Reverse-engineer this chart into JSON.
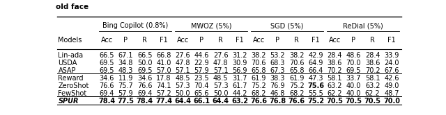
{
  "col_groups": [
    {
      "label": "Bing Copilot (0.8%)",
      "cols": [
        "Acc",
        "P",
        "R",
        "F1"
      ]
    },
    {
      "label": "MWOZ (5%)",
      "cols": [
        "Acc",
        "P",
        "R",
        "F1"
      ]
    },
    {
      "label": "SGD (5%)",
      "cols": [
        "Acc",
        "P",
        "R",
        "F1"
      ]
    },
    {
      "label": "ReDial (5%)",
      "cols": [
        "Acc",
        "P",
        "R",
        "F1"
      ]
    }
  ],
  "rows": [
    {
      "model": "Lin-ada",
      "bold": false,
      "italic": false,
      "vals": [
        "66.5",
        "67.1",
        "66.5",
        "66.8",
        "27.6",
        "44.6",
        "27.6",
        "31.2",
        "38.2",
        "53.2",
        "38.2",
        "42.9",
        "28.4",
        "48.6",
        "28.4",
        "33.9"
      ],
      "bold_cells": []
    },
    {
      "model": "USDA",
      "bold": false,
      "italic": false,
      "vals": [
        "69.5",
        "34.8",
        "50.0",
        "41.0",
        "47.8",
        "22.9",
        "47.8",
        "30.9",
        "70.6",
        "68.3",
        "70.6",
        "64.9",
        "38.6",
        "70.0",
        "38.6",
        "24.0"
      ],
      "bold_cells": []
    },
    {
      "model": "ASAP",
      "bold": false,
      "italic": false,
      "vals": [
        "69.5",
        "48.3",
        "69.5",
        "57.0",
        "57.1",
        "57.9",
        "57.1",
        "56.9",
        "65.8",
        "67.3",
        "65.8",
        "66.4",
        "70.2",
        "69.5",
        "70.2",
        "67.6"
      ],
      "bold_cells": []
    },
    {
      "model": "Reward",
      "bold": false,
      "italic": false,
      "vals": [
        "34.6",
        "11.9",
        "34.6",
        "17.8",
        "48.5",
        "23.5",
        "48.5",
        "31.7",
        "61.9",
        "38.3",
        "61.9",
        "47.3",
        "58.1",
        "33.7",
        "58.1",
        "42.6"
      ],
      "bold_cells": []
    },
    {
      "model": "ZeroShot",
      "bold": false,
      "italic": false,
      "vals": [
        "76.6",
        "75.7",
        "76.6",
        "74.1",
        "57.3",
        "70.4",
        "57.3",
        "61.7",
        "75.2",
        "76.9",
        "75.2",
        "75.6",
        "63.2",
        "40.0",
        "63.2",
        "49.0"
      ],
      "bold_cells": [
        11
      ]
    },
    {
      "model": "FewShot",
      "bold": false,
      "italic": false,
      "vals": [
        "69.4",
        "57.9",
        "69.4",
        "57.2",
        "50.0",
        "65.6",
        "50.0",
        "44.2",
        "68.2",
        "46.8",
        "68.2",
        "55.5",
        "62.2",
        "40.0",
        "62.2",
        "48.7"
      ],
      "bold_cells": []
    },
    {
      "model": "SPUR",
      "bold": true,
      "italic": true,
      "vals": [
        "78.4",
        "77.5",
        "78.4",
        "77.4",
        "64.4",
        "66.1",
        "64.4",
        "63.2",
        "76.6",
        "76.8",
        "76.6",
        "75.2",
        "70.5",
        "70.5",
        "70.5",
        "70.0"
      ],
      "bold_cells": [
        0,
        1,
        2,
        3,
        4,
        5,
        6,
        7,
        8,
        9,
        10,
        11,
        12,
        13,
        14,
        15
      ]
    }
  ],
  "separator_after": [
    2,
    5
  ],
  "bg_color": "#ffffff",
  "text_color": "#000000",
  "font_size": 7.0
}
